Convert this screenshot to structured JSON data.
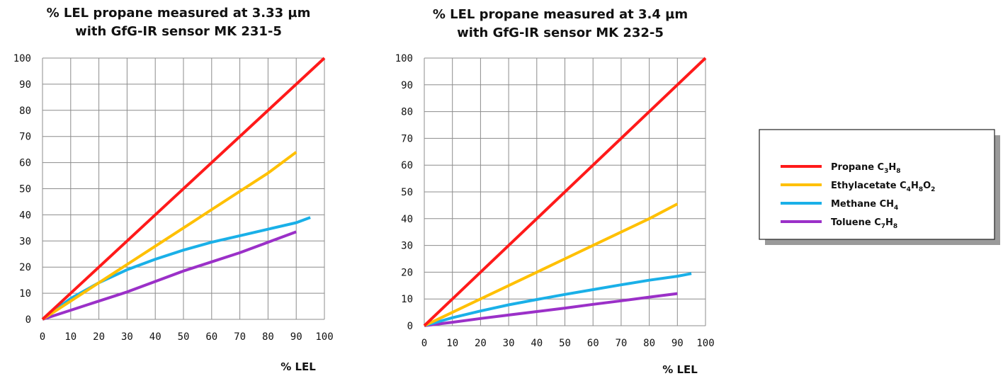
{
  "chart_data": [
    {
      "type": "line",
      "title": [
        "% LEL propane measured at 3.33 µm",
        "with GfG-IR sensor MK 231-5"
      ],
      "xlabel": "% LEL",
      "ylabel": "",
      "xlim": [
        0,
        100
      ],
      "ylim": [
        0,
        100
      ],
      "xticks": [
        "0",
        "10",
        "20",
        "30",
        "40",
        "50",
        "60",
        "70",
        "80",
        "90",
        "100"
      ],
      "yticks": [
        "0",
        "10",
        "20",
        "30",
        "40",
        "50",
        "60",
        "70",
        "80",
        "90",
        "100"
      ],
      "grid": true,
      "series": [
        {
          "color": "#ff1a1a",
          "x": [
            0,
            100
          ],
          "y": [
            0,
            100
          ]
        },
        {
          "color": "#ffc000",
          "x": [
            0,
            10,
            20,
            30,
            40,
            50,
            60,
            70,
            80,
            90
          ],
          "y": [
            0,
            7,
            14,
            21,
            28,
            35,
            42,
            49,
            56,
            64
          ]
        },
        {
          "color": "#1ab0e8",
          "x": [
            0,
            10,
            20,
            30,
            40,
            50,
            60,
            70,
            80,
            90,
            95
          ],
          "y": [
            0,
            8,
            14,
            19,
            23,
            26.5,
            29.5,
            32,
            34.5,
            37,
            39
          ]
        },
        {
          "color": "#9b30c8",
          "x": [
            0,
            10,
            20,
            30,
            40,
            50,
            60,
            70,
            80,
            90
          ],
          "y": [
            0,
            3.5,
            7,
            10.5,
            14.5,
            18.5,
            22,
            25.5,
            29.5,
            33.5
          ]
        }
      ]
    },
    {
      "type": "line",
      "title": [
        "% LEL propane measured at 3.4 µm",
        "with GfG-IR sensor MK 232-5"
      ],
      "xlabel": "% LEL",
      "ylabel": "",
      "xlim": [
        0,
        100
      ],
      "ylim": [
        0,
        100
      ],
      "xticks": [
        "0",
        "10",
        "20",
        "30",
        "40",
        "50",
        "60",
        "70",
        "80",
        "90",
        "100"
      ],
      "yticks": [
        "0",
        "10",
        "20",
        "30",
        "40",
        "50",
        "60",
        "70",
        "80",
        "90",
        "100"
      ],
      "grid": true,
      "series": [
        {
          "color": "#ff1a1a",
          "x": [
            0,
            100
          ],
          "y": [
            0,
            100
          ]
        },
        {
          "color": "#ffc000",
          "x": [
            0,
            10,
            20,
            30,
            40,
            50,
            60,
            70,
            80,
            90
          ],
          "y": [
            0,
            5,
            10,
            15,
            20,
            25,
            30,
            35,
            40,
            45.5
          ]
        },
        {
          "color": "#1ab0e8",
          "x": [
            0,
            10,
            20,
            30,
            40,
            50,
            60,
            70,
            80,
            90,
            95
          ],
          "y": [
            0,
            3,
            5.5,
            7.8,
            9.8,
            11.7,
            13.5,
            15.3,
            17,
            18.5,
            19.5
          ]
        },
        {
          "color": "#9b30c8",
          "x": [
            0,
            10,
            20,
            30,
            40,
            50,
            60,
            70,
            80,
            90
          ],
          "y": [
            0,
            1.3,
            2.7,
            4,
            5.3,
            6.6,
            8,
            9.3,
            10.7,
            12
          ]
        }
      ]
    }
  ],
  "legend": {
    "placement": "right",
    "items": [
      {
        "color": "#ff1a1a",
        "label": [
          {
            "t": "Propane C"
          },
          {
            "t": "3",
            "sub": true
          },
          {
            "t": "H"
          },
          {
            "t": "8",
            "sub": true
          }
        ]
      },
      {
        "color": "#ffc000",
        "label": [
          {
            "t": "Ethylacetate C"
          },
          {
            "t": "4",
            "sub": true
          },
          {
            "t": "H"
          },
          {
            "t": "8",
            "sub": true
          },
          {
            "t": "O"
          },
          {
            "t": "2",
            "sub": true
          }
        ]
      },
      {
        "color": "#1ab0e8",
        "label": [
          {
            "t": "Methane CH"
          },
          {
            "t": "4",
            "sub": true
          }
        ]
      },
      {
        "color": "#9b30c8",
        "label": [
          {
            "t": "Toluene C"
          },
          {
            "t": "7",
            "sub": true
          },
          {
            "t": "H"
          },
          {
            "t": "8",
            "sub": true
          }
        ]
      }
    ]
  }
}
